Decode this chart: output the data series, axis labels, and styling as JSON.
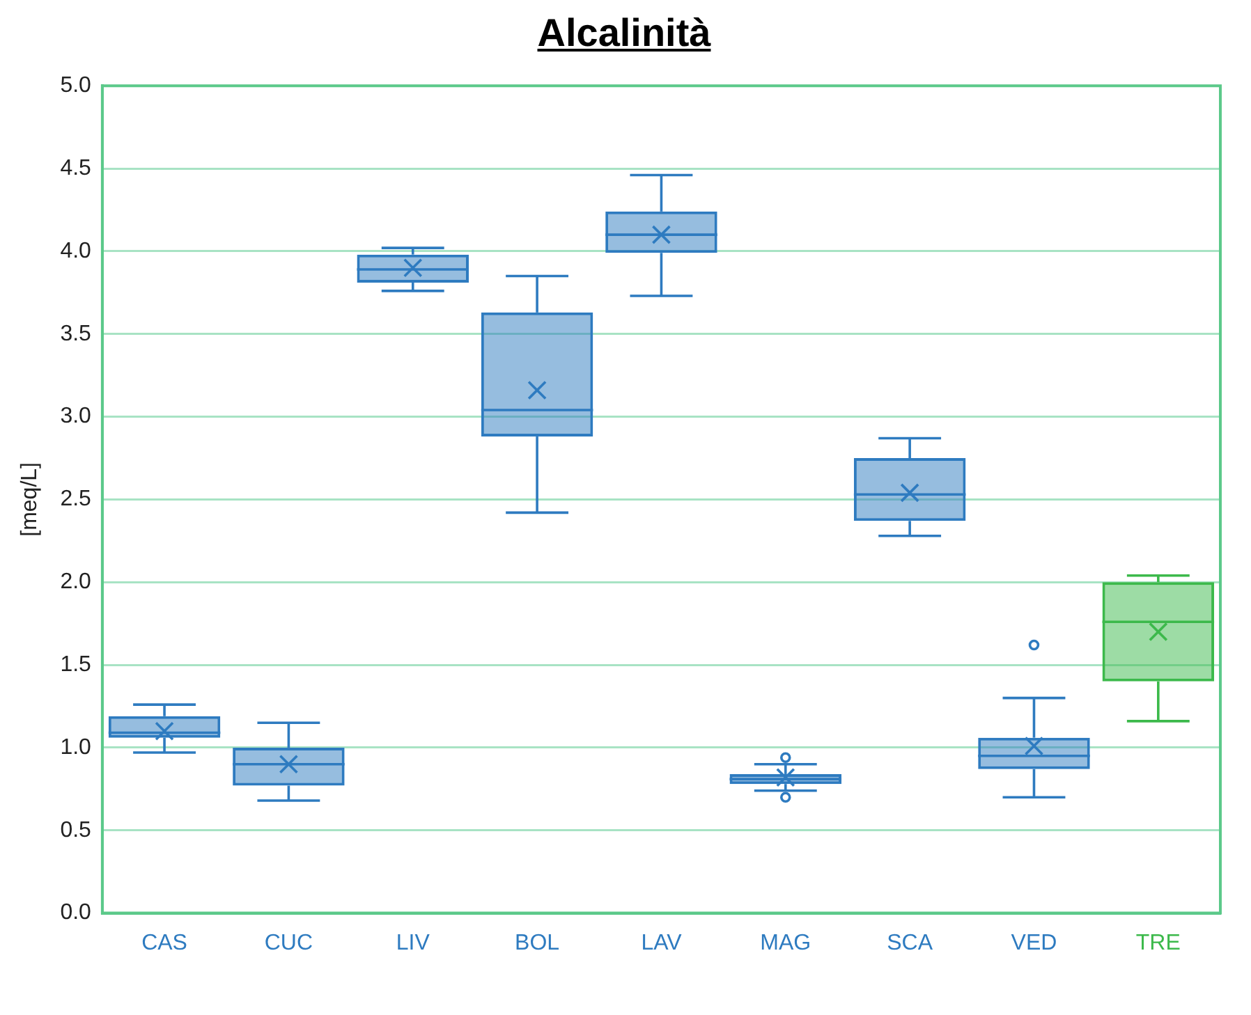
{
  "chart_data": {
    "type": "box",
    "title": "Alcalinità",
    "ylabel": "[meq/L]",
    "categories": [
      "CAS",
      "CUC",
      "LIV",
      "BOL",
      "LAV",
      "MAG",
      "SCA",
      "VED",
      "TRE"
    ],
    "colors": [
      "#2e7bc0",
      "#2e7bc0",
      "#2e7bc0",
      "#2e7bc0",
      "#2e7bc0",
      "#2e7bc0",
      "#2e7bc0",
      "#2e7bc0",
      "#3cb94b"
    ],
    "boxes": [
      {
        "low": 0.97,
        "q1": 1.06,
        "median": 1.09,
        "q3": 1.19,
        "high": 1.26,
        "mean": 1.1
      },
      {
        "low": 0.68,
        "q1": 0.77,
        "median": 0.9,
        "q3": 1.0,
        "high": 1.15,
        "mean": 0.9
      },
      {
        "low": 3.76,
        "q1": 3.81,
        "median": 3.89,
        "q3": 3.98,
        "high": 4.02,
        "mean": 3.9
      },
      {
        "low": 2.42,
        "q1": 2.88,
        "median": 3.04,
        "q3": 3.63,
        "high": 3.85,
        "mean": 3.16
      },
      {
        "low": 3.73,
        "q1": 3.99,
        "median": 4.1,
        "q3": 4.24,
        "high": 4.46,
        "mean": 4.1
      },
      {
        "low": 0.74,
        "q1": 0.78,
        "median": 0.81,
        "q3": 0.84,
        "high": 0.9,
        "mean": 0.82,
        "outliers": [
          0.94,
          0.7
        ]
      },
      {
        "low": 2.28,
        "q1": 2.37,
        "median": 2.53,
        "q3": 2.75,
        "high": 2.87,
        "mean": 2.54
      },
      {
        "low": 0.7,
        "q1": 0.87,
        "median": 0.95,
        "q3": 1.06,
        "high": 1.3,
        "mean": 1.01,
        "outliers": [
          1.62
        ]
      },
      {
        "low": 1.16,
        "q1": 1.4,
        "median": 1.76,
        "q3": 2.0,
        "high": 2.04,
        "mean": 1.7
      }
    ],
    "ylim": [
      0,
      5
    ],
    "yticks": [
      {
        "value": 0,
        "label": "0.0"
      },
      0.5,
      {
        "value": 1,
        "label": "1.0"
      },
      1.5,
      {
        "value": 2,
        "label": "2.0"
      },
      2.5,
      {
        "value": 3,
        "label": "3.0"
      },
      3.5,
      {
        "value": 4,
        "label": "4.0"
      },
      4.5,
      {
        "value": 5,
        "label": "5.0"
      }
    ],
    "grid": "y",
    "legend": false
  }
}
